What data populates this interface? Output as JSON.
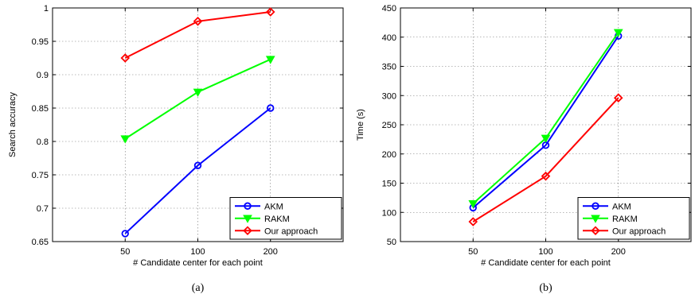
{
  "chart_data": [
    {
      "id": "a",
      "type": "line",
      "caption": "(a)",
      "title": "",
      "xlabel": "# Candidate center for each point",
      "ylabel": "Search accuracy",
      "x_categories": [
        "50",
        "100",
        "200"
      ],
      "ylim": [
        0.65,
        1.0
      ],
      "yticks": [
        0.65,
        0.7,
        0.75,
        0.8,
        0.85,
        0.9,
        0.95,
        1
      ],
      "ytick_labels": [
        "0.65",
        "0.7",
        "0.75",
        "0.8",
        "0.85",
        "0.9",
        "0.95",
        "1"
      ],
      "grid": true,
      "legend": "bottom-right",
      "series": [
        {
          "name": "AKM",
          "color": "#0000ff",
          "marker": "circle",
          "values": [
            0.662,
            0.764,
            0.85
          ]
        },
        {
          "name": "RAKM",
          "color": "#00ff00",
          "marker": "triangle-down",
          "values": [
            0.804,
            0.874,
            0.923
          ]
        },
        {
          "name": "Our approach",
          "color": "#ff0000",
          "marker": "diamond",
          "values": [
            0.925,
            0.98,
            0.994
          ]
        }
      ]
    },
    {
      "id": "b",
      "type": "line",
      "caption": "(b)",
      "title": "",
      "xlabel": "# Candidate center for each point",
      "ylabel": "Time (s)",
      "x_categories": [
        "50",
        "100",
        "200"
      ],
      "ylim": [
        50,
        450
      ],
      "yticks": [
        50,
        100,
        150,
        200,
        250,
        300,
        350,
        400,
        450
      ],
      "ytick_labels": [
        "50",
        "100",
        "150",
        "200",
        "250",
        "300",
        "350",
        "400",
        "450"
      ],
      "grid": true,
      "legend": "bottom-right",
      "series": [
        {
          "name": "AKM",
          "color": "#0000ff",
          "marker": "circle",
          "values": [
            108,
            215,
            402
          ]
        },
        {
          "name": "RAKM",
          "color": "#00ff00",
          "marker": "triangle-down",
          "values": [
            115,
            227,
            408
          ]
        },
        {
          "name": "Our approach",
          "color": "#ff0000",
          "marker": "diamond",
          "values": [
            84,
            162,
            296
          ]
        }
      ]
    }
  ]
}
